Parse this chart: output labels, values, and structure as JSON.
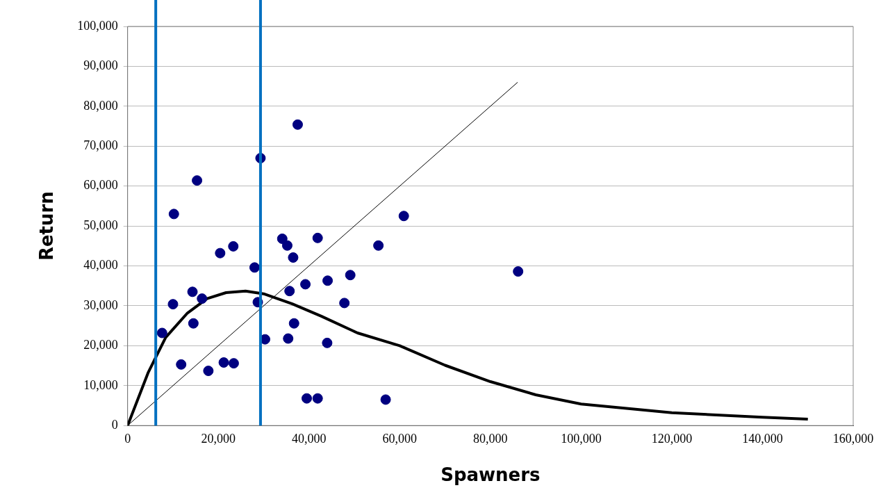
{
  "chart_data": {
    "type": "scatter",
    "xlabel": "Spawners",
    "ylabel": "Return",
    "xlim": [
      0,
      160000
    ],
    "xticks": [
      {
        "value": 0,
        "label": "0"
      },
      {
        "value": 20000,
        "label": "20,000"
      },
      {
        "value": 40000,
        "label": "40,000"
      },
      {
        "value": 60000,
        "label": "60,000"
      },
      {
        "value": 80000,
        "label": "80,000"
      },
      {
        "value": 100000,
        "label": "100,000"
      },
      {
        "value": 120000,
        "label": "120,000"
      },
      {
        "value": 140000,
        "label": "140,000"
      },
      {
        "value": 160000,
        "label": "160,000"
      }
    ],
    "ylim": [
      0,
      100000
    ],
    "yticks": [
      {
        "value": 0,
        "label": "0"
      },
      {
        "value": 10000,
        "label": "10,000"
      },
      {
        "value": 20000,
        "label": "20,000"
      },
      {
        "value": 30000,
        "label": "30,000"
      },
      {
        "value": 40000,
        "label": "40,000"
      },
      {
        "value": 50000,
        "label": "50,000"
      },
      {
        "value": 60000,
        "label": "60,000"
      },
      {
        "value": 70000,
        "label": "70,000"
      },
      {
        "value": 80000,
        "label": "80,000"
      },
      {
        "value": 90000,
        "label": "90,000"
      },
      {
        "value": 100000,
        "label": "100,000"
      }
    ],
    "grid": "y",
    "legend": false,
    "series": [
      {
        "marker": "circle",
        "color": "#000080",
        "x": [
          7600,
          10200,
          10000,
          11800,
          15300,
          14300,
          14500,
          16400,
          17800,
          20400,
          21200,
          23300,
          23400,
          28000,
          28700,
          29300,
          30300,
          34100,
          35200,
          35700,
          36500,
          36700,
          35400,
          37500,
          39200,
          39500,
          41900,
          41900,
          44100,
          44000,
          47800,
          49100,
          55300,
          56900,
          60900,
          86100
        ],
        "values": [
          23200,
          53000,
          30400,
          15300,
          61400,
          33500,
          25600,
          31800,
          13700,
          43200,
          15800,
          44900,
          15600,
          39600,
          30900,
          67000,
          21600,
          46800,
          45100,
          33700,
          42100,
          25600,
          21800,
          75400,
          35400,
          6800,
          47000,
          6800,
          36300,
          20700,
          30700,
          37700,
          45100,
          6500,
          52500,
          38600
        ]
      },
      {
        "type": "line",
        "marker": "none",
        "line_style": "solid",
        "color": "#000000",
        "x": [
          0,
          4500,
          8400,
          13200,
          17500,
          21700,
          26000,
          30000,
          36300,
          42700,
          50700,
          60000,
          70000,
          80000,
          90000,
          100000,
          120000,
          140000,
          150000
        ],
        "values": [
          0,
          13200,
          22100,
          28200,
          31800,
          33300,
          33700,
          33000,
          30500,
          27400,
          23200,
          20000,
          15100,
          11000,
          7700,
          5400,
          3200,
          2100,
          1600
        ]
      },
      {
        "type": "line",
        "marker": "none",
        "line_style": "solid",
        "color": "#000000",
        "x": [
          0,
          86000
        ],
        "values": [
          0,
          86000
        ]
      }
    ],
    "ref_lines": [
      {
        "axis": "x",
        "value": 6200,
        "color": "#0070c0"
      },
      {
        "axis": "x",
        "value": 29300,
        "color": "#0070c0"
      }
    ]
  }
}
